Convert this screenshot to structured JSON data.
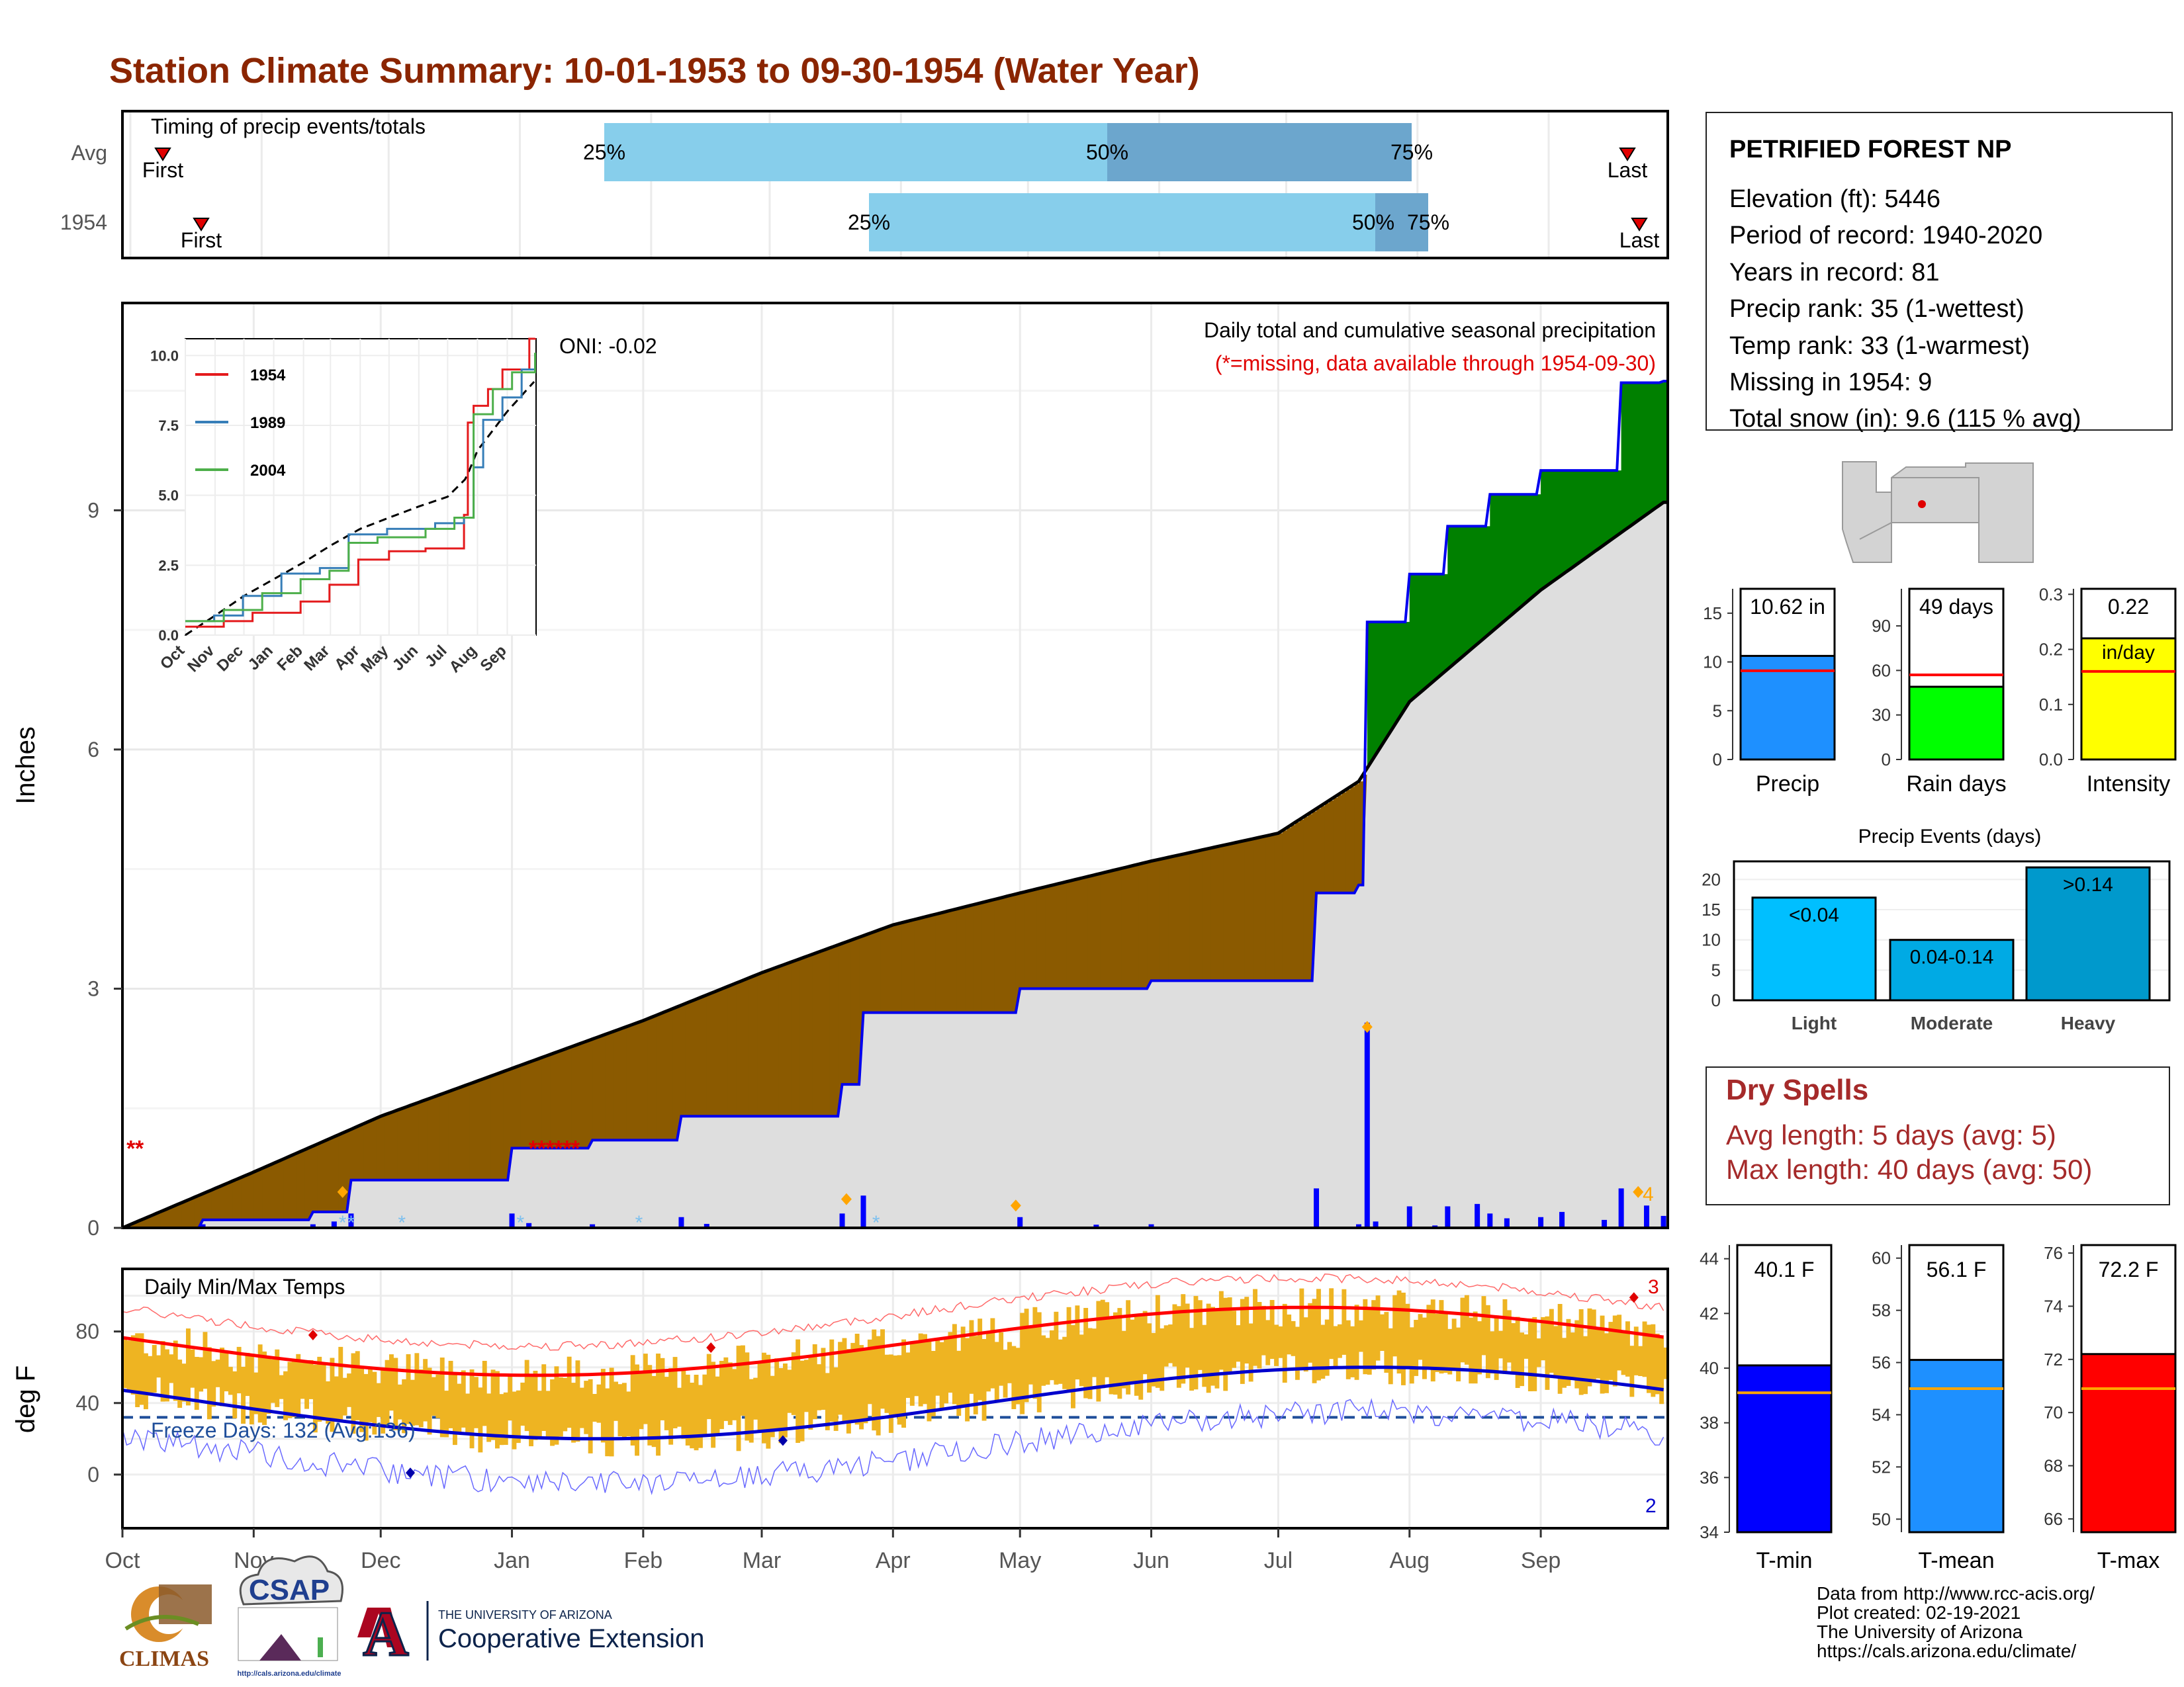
{
  "title": "Station Climate Summary: 10-01-1953 to 09-30-1954 (Water Year)",
  "colors": {
    "title": "#8B2500",
    "precip_light": "#87CEEB",
    "precip_dark": "#6CA6CD",
    "brown": "#8B5A00",
    "green": "#008000",
    "blue_line": "#0000EE",
    "freeze": "#1F4E9A",
    "dry_spell": "#A52A2A",
    "temp_bar": "#EEB422"
  },
  "timing": {
    "panel_title": "Timing of precip events/totals",
    "rows": [
      {
        "label": "Avg",
        "first_label": "First",
        "last_label": "Last",
        "p25_label": "25%",
        "p50_label": "50%",
        "p75_label": "75%"
      },
      {
        "label": "1954",
        "first_label": "First",
        "last_label": "Last",
        "p25_label": "25%",
        "p50_label": "50%",
        "p75_label": "75%"
      }
    ]
  },
  "precip_panel": {
    "title": "Daily total and cumulative seasonal precipitation",
    "subtitle": "(*=missing, data available through 1954-09-30)",
    "oni": "ONI: -0.02",
    "ylabel": "Inches",
    "yticks": [
      "0",
      "3",
      "6",
      "9"
    ],
    "end_count": "4"
  },
  "inset": {
    "yticks": [
      "0.0",
      "2.5",
      "5.0",
      "7.5",
      "10.0"
    ],
    "months": [
      "Oct",
      "Nov",
      "Dec",
      "Jan",
      "Feb",
      "Mar",
      "Apr",
      "May",
      "Jun",
      "Jul",
      "Aug",
      "Sep"
    ],
    "legend": [
      {
        "name": "1954",
        "color": "#E41A1C"
      },
      {
        "name": "1989",
        "color": "#377EB8"
      },
      {
        "name": "2004",
        "color": "#4DAF4A"
      }
    ]
  },
  "temp_panel": {
    "title": "Daily Min/Max Temps",
    "ylabel": "deg F",
    "yticks": [
      "0",
      "40",
      "80"
    ],
    "freeze": "Freeze Days: 132 (Avg:136)",
    "max_count": "3",
    "min_count": "2"
  },
  "x_months": [
    "Oct",
    "Nov",
    "Dec",
    "Jan",
    "Feb",
    "Mar",
    "Apr",
    "May",
    "Jun",
    "Jul",
    "Aug",
    "Sep"
  ],
  "station": {
    "name": "PETRIFIED FOREST NP",
    "lines": [
      "Elevation (ft): 5446",
      "Period of record: 1940-2020",
      "Years in record: 81",
      "Precip rank: 35 (1-wettest)",
      "Temp rank: 33 (1-warmest)",
      "Missing in 1954: 9",
      "Total snow (in): 9.6 (115 % avg)"
    ]
  },
  "mini_bars": [
    {
      "label": "Precip",
      "value_text": "10.62 in",
      "yticks": [
        "0",
        "5",
        "10",
        "15"
      ],
      "color": "#1E90FF"
    },
    {
      "label": "Rain days",
      "value_text": "49 days",
      "yticks": [
        "0",
        "30",
        "60",
        "90"
      ],
      "color": "#00FF00"
    },
    {
      "label": "Intensity",
      "value_text": "0.22",
      "value_text2": "in/day",
      "yticks": [
        "0.0",
        "0.1",
        "0.2",
        "0.3"
      ],
      "color": "#FFFF00"
    }
  ],
  "precip_events": {
    "title": "Precip Events (days)",
    "yticks": [
      "0",
      "5",
      "10",
      "15",
      "20"
    ],
    "bars": [
      {
        "label": "Light",
        "inner": "<0.04",
        "value": 17,
        "color": "#00BFFF"
      },
      {
        "label": "Moderate",
        "inner": "0.04-0.14",
        "value": 10,
        "color": "#00AAE4"
      },
      {
        "label": "Heavy",
        "inner": ">0.14",
        "value": 22,
        "color": "#0099CC"
      }
    ]
  },
  "dry_spells": {
    "title": "Dry Spells",
    "avg": "Avg length: 5 days (avg: 5)",
    "max": "Max length: 40 days (avg: 50)"
  },
  "temp_bars": [
    {
      "label": "T-min",
      "value_text": "40.1 F",
      "value": 40.1,
      "avg": 39.1,
      "ymin": 34,
      "ymax": 44.5,
      "yticks": [
        "34",
        "36",
        "38",
        "40",
        "42",
        "44"
      ],
      "color": "#0000FF"
    },
    {
      "label": "T-mean",
      "value_text": "56.1 F",
      "value": 56.1,
      "avg": 55.0,
      "ymin": 49.5,
      "ymax": 60.5,
      "yticks": [
        "50",
        "52",
        "54",
        "56",
        "58",
        "60"
      ],
      "color": "#1E90FF"
    },
    {
      "label": "T-max",
      "value_text": "72.2 F",
      "value": 72.2,
      "avg": 70.9,
      "ymin": 65.5,
      "ymax": 76.3,
      "yticks": [
        "66",
        "68",
        "70",
        "72",
        "74",
        "76"
      ],
      "color": "#FF0000"
    }
  ],
  "footer": {
    "lines": [
      "Data from http://www.rcc-acis.org/",
      "Plot created: 02-19-2021",
      "The University of Arizona",
      "https://cals.arizona.edu/climate/"
    ],
    "logos": {
      "climas": "CLIMAS",
      "csap": "CSAP",
      "csap_url": "http://cals.arizona.edu/climate",
      "ua_small": "THE UNIVERSITY OF ARIZONA",
      "ua_big": "Cooperative Extension"
    }
  },
  "chart_data": {
    "type": "area",
    "title": "Daily total and cumulative seasonal precipitation",
    "ylabel": "Inches",
    "ylim": [
      0,
      11.6
    ],
    "series": [
      {
        "name": "1954 cumulative",
        "x": [
          "Oct 1",
          "Oct 20",
          "Nov 15",
          "Nov 24",
          "Jan 1",
          "Jan 20",
          "Feb 10",
          "Mar 20",
          "Mar 25",
          "May 1",
          "Jun 1",
          "Jul 1",
          "Jul 10",
          "Jul 20",
          "Jul 22",
          "Aug 1",
          "Aug 10",
          "Aug 20",
          "Sep 1",
          "Sep 20",
          "Sep 30"
        ],
        "values": [
          0,
          0.1,
          0.2,
          0.6,
          1.0,
          1.1,
          1.4,
          1.8,
          2.7,
          3.0,
          3.1,
          3.1,
          4.2,
          4.3,
          7.6,
          8.2,
          8.8,
          9.2,
          9.5,
          10.6,
          10.62
        ]
      },
      {
        "name": "Average cumulative",
        "x": [
          "Oct 1",
          "Nov 1",
          "Dec 1",
          "Jan 1",
          "Feb 1",
          "Mar 1",
          "Apr 1",
          "May 1",
          "Jun 1",
          "Jul 1",
          "Jul 20",
          "Aug 1",
          "Sep 1",
          "Sep 30"
        ],
        "values": [
          0,
          0.7,
          1.4,
          2.0,
          2.6,
          3.2,
          3.8,
          4.2,
          4.6,
          4.95,
          5.6,
          6.6,
          8.0,
          9.1
        ]
      }
    ]
  }
}
